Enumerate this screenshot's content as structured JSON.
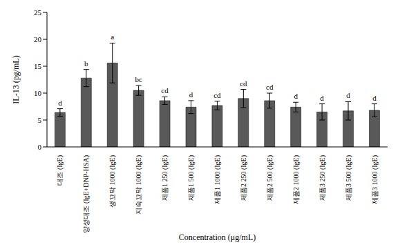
{
  "chart_data": {
    "type": "bar",
    "x_label": "Concentration (μg/mL)",
    "y_label": "IL-13 (pg/mL)",
    "categories": [
      "대조 (IgE)",
      "양성대조 (IgE+DNP-HSA)",
      "생꼬막 1000 (IgE)",
      "지숙꼬막 1000 (IgE)",
      "제품1 250 (IgE)",
      "제품1 500 (IgE)",
      "제품1 1000 (IgE)",
      "제품2 250 (IgE)",
      "제품2 500 (IgE)",
      "제품2 1000 (IgE)",
      "제품3 250 (IgE)",
      "제품3 500 (IgE)",
      "제품3 1000 (IgE)"
    ],
    "values": [
      6.4,
      12.8,
      15.6,
      10.5,
      8.6,
      7.4,
      7.7,
      9.0,
      8.6,
      7.4,
      6.5,
      6.7,
      6.8
    ],
    "errors": [
      0.7,
      1.6,
      3.7,
      0.9,
      0.7,
      1.2,
      0.8,
      1.7,
      1.4,
      0.9,
      1.5,
      1.7,
      1.2
    ],
    "letters": [
      "d",
      "b",
      "a",
      "bc",
      "cd",
      "d",
      "cd",
      "cd",
      "cd",
      "d",
      "d",
      "d",
      "d"
    ],
    "color": "#595959",
    "ylim": [
      0,
      25
    ],
    "yticks": [
      0,
      5,
      10,
      15,
      20,
      25
    ],
    "grid": false
  }
}
